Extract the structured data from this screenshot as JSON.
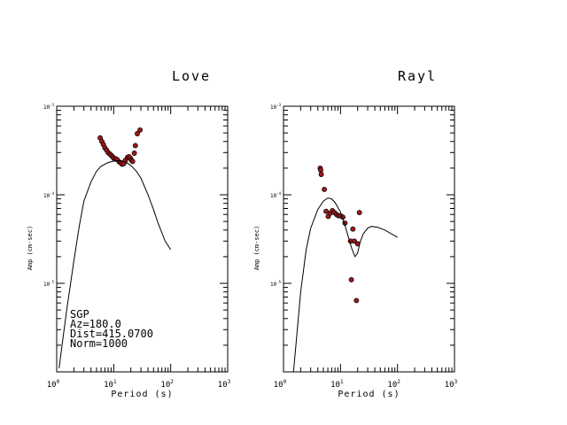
{
  "chart_data": [
    {
      "type": "scatter",
      "title": "Love",
      "xlabel": "Period (s)",
      "ylabel": "Amp (cm-sec)",
      "x_scale": "log",
      "y_scale": "log",
      "xlim": [
        1,
        1000
      ],
      "ylim": [
        1e-06,
        0.001
      ],
      "x_ticks": [
        {
          "base": "10",
          "exp": "0"
        },
        {
          "base": "10",
          "exp": "1"
        },
        {
          "base": "10",
          "exp": "2"
        },
        {
          "base": "10",
          "exp": "3"
        }
      ],
      "y_ticks": [
        {
          "base": "10",
          "exp": "-3"
        },
        {
          "base": "10",
          "exp": "-4"
        },
        {
          "base": "10",
          "exp": "-5"
        }
      ],
      "annotations": [
        "SGP",
        "Az=180.0",
        "Dist=415.0700",
        "Norm=1000"
      ],
      "marker_color": "#a01818",
      "series": [
        {
          "kind": "points",
          "points": [
            [
              5.8,
              0.00044
            ],
            [
              6.2,
              0.0004
            ],
            [
              6.6,
              0.00037
            ],
            [
              7.0,
              0.00034
            ],
            [
              7.5,
              0.00032
            ],
            [
              8.0,
              0.0003
            ],
            [
              8.5,
              0.00029
            ],
            [
              9.0,
              0.00028
            ],
            [
              9.5,
              0.00027
            ],
            [
              10.0,
              0.00026
            ],
            [
              10.8,
              0.000255
            ],
            [
              11.5,
              0.00025
            ],
            [
              12.5,
              0.000235
            ],
            [
              13.5,
              0.00023
            ],
            [
              14.0,
              0.000222
            ],
            [
              15.0,
              0.000225
            ],
            [
              16.0,
              0.000245
            ],
            [
              17.5,
              0.000265
            ],
            [
              18.5,
              0.00027
            ],
            [
              19.5,
              0.00026
            ],
            [
              20.5,
              0.000245
            ],
            [
              21.5,
              0.000238
            ],
            [
              23.0,
              0.000295
            ],
            [
              24.0,
              0.00036
            ],
            [
              26.0,
              0.00049
            ],
            [
              29.0,
              0.00054
            ]
          ]
        },
        {
          "kind": "line",
          "points": [
            [
              1.1,
              1.1e-06
            ],
            [
              1.3,
              2.5e-06
            ],
            [
              1.5,
              5e-06
            ],
            [
              2.0,
              1.8e-05
            ],
            [
              2.5,
              4.5e-05
            ],
            [
              3.0,
              8.5e-05
            ],
            [
              4.0,
              0.00014
            ],
            [
              5.0,
              0.000185
            ],
            [
              6.0,
              0.00021
            ],
            [
              8.0,
              0.000232
            ],
            [
              10.0,
              0.00024
            ],
            [
              13.0,
              0.000243
            ],
            [
              16.0,
              0.000235
            ],
            [
              20.0,
              0.000215
            ],
            [
              25.0,
              0.000185
            ],
            [
              30.0,
              0.000155
            ],
            [
              40.0,
              0.0001
            ],
            [
              50.0,
              6.8e-05
            ],
            [
              60.0,
              4.8e-05
            ],
            [
              80.0,
              3e-05
            ],
            [
              100.0,
              2.4e-05
            ]
          ]
        }
      ]
    },
    {
      "type": "scatter",
      "title": "Rayl",
      "xlabel": "Period (s)",
      "ylabel": "Amp (cm-sec)",
      "x_scale": "log",
      "y_scale": "log",
      "xlim": [
        1,
        1000
      ],
      "ylim": [
        1e-06,
        0.001
      ],
      "x_ticks": [
        {
          "base": "10",
          "exp": "0"
        },
        {
          "base": "10",
          "exp": "1"
        },
        {
          "base": "10",
          "exp": "2"
        },
        {
          "base": "10",
          "exp": "3"
        }
      ],
      "y_ticks": [
        {
          "base": "10",
          "exp": "-3"
        },
        {
          "base": "10",
          "exp": "-4"
        },
        {
          "base": "10",
          "exp": "-5"
        }
      ],
      "marker_color": "#a01818",
      "series": [
        {
          "kind": "points",
          "points": [
            [
              4.4,
              0.0002
            ],
            [
              4.5,
              0.00019
            ],
            [
              4.6,
              0.00017
            ],
            [
              5.2,
              0.000115
            ],
            [
              5.6,
              6.5e-05
            ],
            [
              6.1,
              5.7e-05
            ],
            [
              6.6,
              6.2e-05
            ],
            [
              7.2,
              6.6e-05
            ],
            [
              7.8,
              6.3e-05
            ],
            [
              8.5,
              6e-05
            ],
            [
              9.2,
              5.8e-05
            ],
            [
              10.0,
              5.8e-05
            ],
            [
              11.0,
              5.6e-05
            ],
            [
              12.0,
              4.8e-05
            ],
            [
              15.0,
              3e-05
            ],
            [
              15.5,
              1.1e-05
            ],
            [
              16.5,
              4.1e-05
            ],
            [
              17.5,
              3e-05
            ],
            [
              19.0,
              6.4e-06
            ],
            [
              20.0,
              2.8e-05
            ],
            [
              21.5,
              6.3e-05
            ]
          ]
        },
        {
          "kind": "line",
          "points": [
            [
              1.5,
              1e-06
            ],
            [
              2.0,
              8e-06
            ],
            [
              2.5,
              2.4e-05
            ],
            [
              3.0,
              4.2e-05
            ],
            [
              4.0,
              6.8e-05
            ],
            [
              5.0,
              8.5e-05
            ],
            [
              6.0,
              9.2e-05
            ],
            [
              7.0,
              9e-05
            ],
            [
              8.0,
              8.2e-05
            ],
            [
              10.0,
              6.4e-05
            ],
            [
              12.0,
              4.5e-05
            ],
            [
              14.0,
              3.2e-05
            ],
            [
              16.0,
              2.4e-05
            ],
            [
              18.0,
              2e-05
            ],
            [
              20.0,
              2.2e-05
            ],
            [
              22.0,
              2.9e-05
            ],
            [
              25.0,
              3.6e-05
            ],
            [
              30.0,
              4.2e-05
            ],
            [
              35.0,
              4.4e-05
            ],
            [
              45.0,
              4.3e-05
            ],
            [
              60.0,
              4e-05
            ],
            [
              80.0,
              3.6e-05
            ],
            [
              100.0,
              3.3e-05
            ]
          ]
        }
      ]
    }
  ]
}
